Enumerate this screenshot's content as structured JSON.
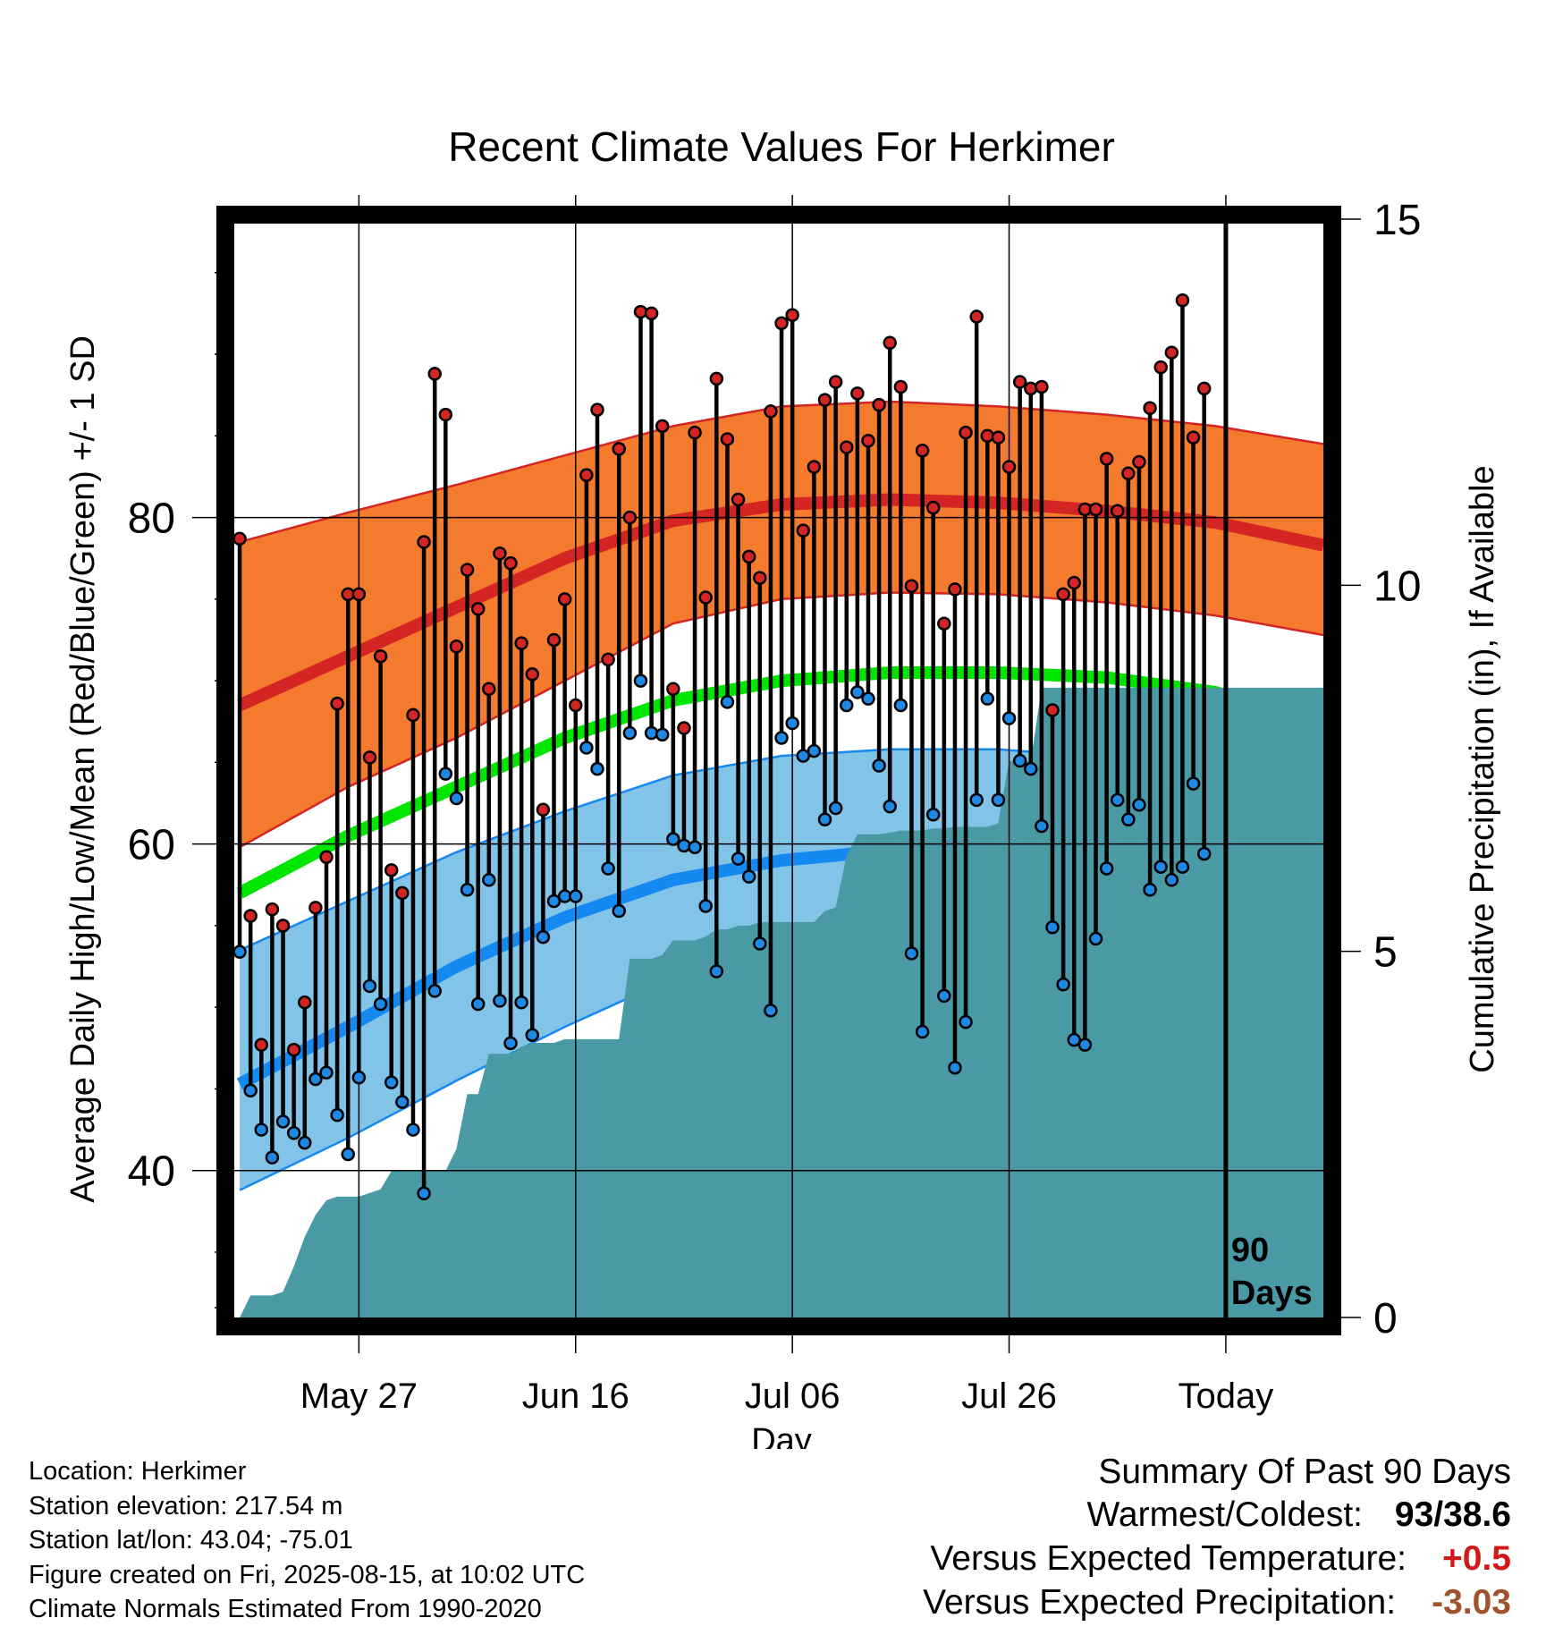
{
  "chart_data": {
    "type": "line",
    "title": "Recent Climate Values For Herkimer",
    "xlabel": "Day",
    "ylabel_left": "Average Daily High/Low/Mean (Red/Blue/Green) +/- 1 SD",
    "ylabel_right": "Cumulative Precipitation (in), If Available",
    "x_tick_labels": [
      "May 27",
      "Jun 16",
      "Jul 06",
      "Jul 26",
      "Today"
    ],
    "x_tick_days": [
      11,
      31,
      51,
      71,
      91
    ],
    "x_range_days": [
      -0.5,
      100
    ],
    "y_left_ticks": [
      "40",
      "60",
      "80"
    ],
    "y_left_range": [
      31,
      98
    ],
    "y_right_ticks": [
      "0",
      "5",
      "10",
      "15"
    ],
    "y_right_range": [
      0,
      15
    ],
    "grid": true,
    "today_marker_label": [
      "90",
      "Days"
    ],
    "normals": {
      "high_mean": [
        [
          0,
          68.5
        ],
        [
          10,
          71.5
        ],
        [
          20,
          74.5
        ],
        [
          30,
          77.5
        ],
        [
          40,
          79.8
        ],
        [
          50,
          80.8
        ],
        [
          60,
          81.1
        ],
        [
          70,
          80.9
        ],
        [
          80,
          80.4
        ],
        [
          90,
          79.7
        ],
        [
          100,
          78.3
        ]
      ],
      "high_upper": [
        [
          0,
          78.5
        ],
        [
          10,
          80.3
        ],
        [
          20,
          82
        ],
        [
          30,
          83.8
        ],
        [
          40,
          85.6
        ],
        [
          50,
          86.8
        ],
        [
          60,
          87.1
        ],
        [
          70,
          86.8
        ],
        [
          80,
          86.3
        ],
        [
          90,
          85.6
        ],
        [
          100,
          84.5
        ]
      ],
      "high_lower": [
        [
          0,
          59.8
        ],
        [
          10,
          63.5
        ],
        [
          20,
          66.5
        ],
        [
          30,
          70
        ],
        [
          40,
          73.5
        ],
        [
          50,
          75
        ],
        [
          60,
          75.4
        ],
        [
          70,
          75.3
        ],
        [
          80,
          74.8
        ],
        [
          90,
          74
        ],
        [
          100,
          72.8
        ]
      ],
      "mean": [
        [
          0,
          57
        ],
        [
          10,
          60.5
        ],
        [
          20,
          63.5
        ],
        [
          30,
          66.5
        ],
        [
          40,
          68.8
        ],
        [
          50,
          70
        ],
        [
          60,
          70.5
        ],
        [
          70,
          70.5
        ],
        [
          80,
          70.2
        ],
        [
          90,
          69.3
        ],
        [
          100,
          67.5
        ]
      ],
      "low_mean": [
        [
          0,
          45.3
        ],
        [
          10,
          48.8
        ],
        [
          20,
          52.5
        ],
        [
          30,
          55.5
        ],
        [
          40,
          57.8
        ],
        [
          50,
          59
        ],
        [
          60,
          59.6
        ],
        [
          70,
          59.6
        ],
        [
          80,
          59.2
        ],
        [
          90,
          58.5
        ],
        [
          100,
          56.6
        ]
      ],
      "low_upper": [
        [
          0,
          53.5
        ],
        [
          10,
          56.5
        ],
        [
          20,
          59.5
        ],
        [
          30,
          62
        ],
        [
          40,
          64.2
        ],
        [
          50,
          65.4
        ],
        [
          60,
          65.8
        ],
        [
          70,
          65.8
        ],
        [
          80,
          65.3
        ],
        [
          90,
          64.6
        ],
        [
          100,
          63.3
        ]
      ],
      "low_lower": [
        [
          0,
          38.8
        ],
        [
          10,
          42
        ],
        [
          20,
          45.5
        ],
        [
          30,
          48.8
        ],
        [
          40,
          51.8
        ],
        [
          50,
          53.5
        ],
        [
          60,
          54.2
        ],
        [
          70,
          54.3
        ],
        [
          80,
          53.8
        ],
        [
          90,
          52.7
        ],
        [
          100,
          50.8
        ]
      ]
    },
    "highs": [
      78.7,
      55.6,
      47.7,
      56,
      55,
      47.4,
      50.3,
      56.1,
      59.2,
      68.6,
      75.3,
      75.3,
      65.3,
      71.5,
      58.4,
      57,
      67.9,
      78.5,
      88.8,
      86.3,
      72.1,
      76.8,
      74.4,
      69.5,
      77.8,
      77.2,
      72.3,
      70.4,
      62.1,
      72.5,
      75,
      68.5,
      82.6,
      86.6,
      71.3,
      84.2,
      80,
      92.6,
      92.5,
      85.6,
      69.5,
      67.1,
      85.2,
      75.1,
      88.5,
      84.8,
      81.1,
      77.6,
      76.3,
      86.5,
      91.9,
      92.4,
      79.2,
      83.1,
      87.2,
      88.3,
      84.3,
      87.6,
      84.7,
      86.9,
      90.7,
      88,
      75.8,
      84.1,
      80.6,
      73.5,
      75.6,
      85.2,
      92.3,
      85,
      84.9,
      83.1,
      88.3,
      87.9,
      88,
      68.2,
      75.3,
      76,
      80.5,
      80.5,
      83.6,
      80.4,
      82.7,
      83.4,
      86.7,
      89.2,
      90.1,
      93.3,
      84.9,
      87.9
    ],
    "lows": [
      53.4,
      44.9,
      42.5,
      40.8,
      43,
      42.3,
      41.7,
      45.6,
      46,
      43.4,
      41,
      45.7,
      51.3,
      50.2,
      45.4,
      44.2,
      42.5,
      38.6,
      51,
      64.3,
      62.8,
      57.2,
      50.2,
      57.8,
      50.4,
      47.8,
      50.3,
      48.3,
      54.3,
      56.5,
      56.8,
      56.8,
      65.9,
      64.6,
      58.5,
      55.9,
      66.8,
      70,
      66.8,
      66.7,
      60.3,
      59.9,
      59.8,
      56.2,
      52.2,
      68.7,
      59.1,
      58,
      53.9,
      49.8,
      66.5,
      67.4,
      65.4,
      65.7,
      61.5,
      62.2,
      68.5,
      69.3,
      68.9,
      64.8,
      62.3,
      68.5,
      53.3,
      48.5,
      61.8,
      50.7,
      46.3,
      49.1,
      62.7,
      68.9,
      62.7,
      67.7,
      65.1,
      64.6,
      61.1,
      54.9,
      51.4,
      48,
      47.7,
      54.2,
      58.5,
      62.7,
      61.5,
      62.4,
      57.2,
      58.6,
      57.8,
      58.6,
      63.7,
      59.4
    ],
    "precip_cumulative": [
      [
        0,
        0
      ],
      [
        1,
        0.3
      ],
      [
        2,
        0.3
      ],
      [
        3,
        0.3
      ],
      [
        4,
        0.35
      ],
      [
        5,
        0.7
      ],
      [
        6,
        1.1
      ],
      [
        7,
        1.4
      ],
      [
        8,
        1.6
      ],
      [
        9,
        1.65
      ],
      [
        10,
        1.65
      ],
      [
        11,
        1.65
      ],
      [
        12,
        1.7
      ],
      [
        13,
        1.75
      ],
      [
        14,
        2
      ],
      [
        15,
        2
      ],
      [
        16,
        2
      ],
      [
        17,
        2
      ],
      [
        18,
        2
      ],
      [
        19,
        2
      ],
      [
        20,
        2.3
      ],
      [
        21,
        3.05
      ],
      [
        22,
        3.05
      ],
      [
        23,
        3.6
      ],
      [
        24,
        3.6
      ],
      [
        25,
        3.6
      ],
      [
        26,
        3.7
      ],
      [
        27,
        3.75
      ],
      [
        28,
        3.75
      ],
      [
        29,
        3.75
      ],
      [
        30,
        3.8
      ],
      [
        31,
        3.8
      ],
      [
        32,
        3.8
      ],
      [
        33,
        3.8
      ],
      [
        34,
        3.8
      ],
      [
        35,
        3.8
      ],
      [
        36,
        4.9
      ],
      [
        37,
        4.9
      ],
      [
        38,
        4.9
      ],
      [
        39,
        4.95
      ],
      [
        40,
        5.15
      ],
      [
        41,
        5.15
      ],
      [
        42,
        5.15
      ],
      [
        43,
        5.2
      ],
      [
        44,
        5.3
      ],
      [
        45,
        5.3
      ],
      [
        46,
        5.35
      ],
      [
        47,
        5.35
      ],
      [
        48,
        5.4
      ],
      [
        49,
        5.4
      ],
      [
        50,
        5.4
      ],
      [
        51,
        5.4
      ],
      [
        52,
        5.4
      ],
      [
        53,
        5.4
      ],
      [
        54,
        5.55
      ],
      [
        55,
        5.6
      ],
      [
        56,
        6.3
      ],
      [
        57,
        6.6
      ],
      [
        58,
        6.6
      ],
      [
        59,
        6.6
      ],
      [
        60,
        6.62
      ],
      [
        61,
        6.65
      ],
      [
        62,
        6.65
      ],
      [
        63,
        6.65
      ],
      [
        64,
        6.68
      ],
      [
        65,
        6.68
      ],
      [
        66,
        6.7
      ],
      [
        67,
        6.7
      ],
      [
        68,
        6.7
      ],
      [
        69,
        6.7
      ],
      [
        70,
        6.75
      ],
      [
        71,
        7.6
      ],
      [
        72,
        7.6
      ],
      [
        73,
        7.6
      ],
      [
        74,
        8.6
      ],
      [
        75,
        8.6
      ],
      [
        76,
        8.6
      ],
      [
        77,
        8.6
      ],
      [
        78,
        8.6
      ],
      [
        79,
        8.6
      ],
      [
        80,
        8.6
      ],
      [
        81,
        8.6
      ],
      [
        82,
        8.6
      ],
      [
        83,
        8.6
      ],
      [
        84,
        8.6
      ],
      [
        85,
        8.6
      ],
      [
        86,
        8.6
      ],
      [
        87,
        8.6
      ],
      [
        88,
        8.6
      ],
      [
        89,
        8.6
      ],
      [
        90,
        8.6
      ],
      [
        100,
        8.6
      ]
    ],
    "colors": {
      "high_band": "#f47a2e",
      "high_line": "#d42424",
      "low_band": "#82c3e8",
      "low_line": "#1589f2",
      "mean_line": "#00e600",
      "precip": "#4a9aa5",
      "high_dot": "#d42424",
      "low_dot": "#1e88e5"
    }
  },
  "footer": {
    "location": "Location: Herkimer",
    "elevation": "Station elevation: 217.54 m",
    "latlon": "Station lat/lon: 43.04; -75.01",
    "created": "Figure created on Fri, 2025-08-15, at 10:02 UTC",
    "normals": "Climate Normals Estimated From 1990-2020"
  },
  "summary": {
    "title": "Summary Of Past 90 Days",
    "warmest_label": "Warmest/Coldest:",
    "warmest_value": "93/38.6",
    "temp_label": "Versus Expected Temperature:",
    "temp_value": "+0.5",
    "precip_label": "Versus Expected Precipitation:",
    "precip_value": "-3.03"
  }
}
